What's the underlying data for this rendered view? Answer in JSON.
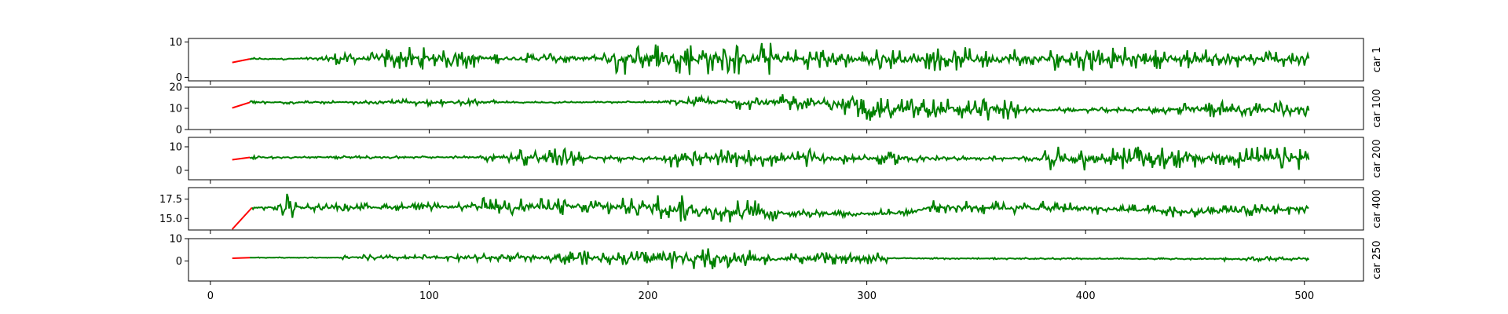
{
  "chart_data": {
    "type": "line",
    "x_ticks": [
      0,
      100,
      200,
      300,
      400,
      500
    ],
    "x_tick_labels": [
      "0",
      "100",
      "200",
      "300",
      "400",
      "500"
    ],
    "xlim": [
      -10,
      527
    ],
    "colors": {
      "prefix": "#ff0000",
      "main": "#008000",
      "frame": "#000000"
    },
    "panels": [
      {
        "label": "car 1",
        "ylim": [
          -1,
          11
        ],
        "y_ticks": [
          0,
          10
        ],
        "y_tick_labels": [
          "0",
          "10"
        ],
        "prefix": {
          "x": [
            10,
            18
          ],
          "y": [
            4.2,
            5.2
          ]
        },
        "baseline": [
          [
            18,
            5.2
          ],
          [
            100,
            5.4
          ],
          [
            200,
            5.3
          ],
          [
            300,
            5.1
          ],
          [
            400,
            5.2
          ],
          [
            502,
            5.1
          ]
        ],
        "noise": [
          {
            "x_start": 18,
            "x_end": 50,
            "amplitude": 0.4
          },
          {
            "x_start": 50,
            "x_end": 80,
            "amplitude": 1.8
          },
          {
            "x_start": 80,
            "x_end": 125,
            "amplitude": 3.2
          },
          {
            "x_start": 125,
            "x_end": 180,
            "amplitude": 1.6
          },
          {
            "x_start": 180,
            "x_end": 260,
            "amplitude": 4.8
          },
          {
            "x_start": 260,
            "x_end": 330,
            "amplitude": 3.0
          },
          {
            "x_start": 330,
            "x_end": 420,
            "amplitude": 3.4
          },
          {
            "x_start": 420,
            "x_end": 502,
            "amplitude": 2.8
          }
        ]
      },
      {
        "label": "car 100",
        "ylim": [
          0,
          20
        ],
        "y_ticks": [
          0,
          10,
          20
        ],
        "y_tick_labels": [
          "0",
          "10",
          "20"
        ],
        "prefix": {
          "x": [
            10,
            18
          ],
          "y": [
            10.2,
            12.8
          ]
        },
        "baseline": [
          [
            18,
            12.8
          ],
          [
            150,
            12.8
          ],
          [
            230,
            13.0
          ],
          [
            280,
            12.5
          ],
          [
            300,
            9.5
          ],
          [
            400,
            9.2
          ],
          [
            502,
            9.4
          ]
        ],
        "noise": [
          {
            "x_start": 18,
            "x_end": 80,
            "amplitude": 0.8
          },
          {
            "x_start": 80,
            "x_end": 130,
            "amplitude": 1.5
          },
          {
            "x_start": 130,
            "x_end": 210,
            "amplitude": 0.6
          },
          {
            "x_start": 210,
            "x_end": 240,
            "amplitude": 2.5
          },
          {
            "x_start": 240,
            "x_end": 290,
            "amplitude": 4.0
          },
          {
            "x_start": 290,
            "x_end": 370,
            "amplitude": 5.5
          },
          {
            "x_start": 370,
            "x_end": 430,
            "amplitude": 1.2
          },
          {
            "x_start": 430,
            "x_end": 502,
            "amplitude": 4.0
          }
        ]
      },
      {
        "label": "car 200",
        "ylim": [
          -4,
          14
        ],
        "y_ticks": [
          0,
          10
        ],
        "y_tick_labels": [
          "0",
          "10"
        ],
        "prefix": {
          "x": [
            10,
            18
          ],
          "y": [
            4.5,
            5.5
          ]
        },
        "baseline": [
          [
            18,
            5.5
          ],
          [
            120,
            5.6
          ],
          [
            200,
            5.0
          ],
          [
            300,
            5.1
          ],
          [
            400,
            5.0
          ],
          [
            502,
            5.2
          ]
        ],
        "noise": [
          {
            "x_start": 18,
            "x_end": 120,
            "amplitude": 0.6
          },
          {
            "x_start": 120,
            "x_end": 140,
            "amplitude": 1.8
          },
          {
            "x_start": 140,
            "x_end": 170,
            "amplitude": 4.0
          },
          {
            "x_start": 170,
            "x_end": 210,
            "amplitude": 1.6
          },
          {
            "x_start": 210,
            "x_end": 280,
            "amplitude": 3.8
          },
          {
            "x_start": 280,
            "x_end": 330,
            "amplitude": 2.8
          },
          {
            "x_start": 330,
            "x_end": 380,
            "amplitude": 1.0
          },
          {
            "x_start": 380,
            "x_end": 502,
            "amplitude": 5.0
          }
        ]
      },
      {
        "label": "car 400",
        "ylim": [
          13.5,
          19.0
        ],
        "y_ticks": [
          15.0,
          17.5
        ],
        "y_tick_labels": [
          "15.0",
          "17.5"
        ],
        "prefix": {
          "x": [
            10,
            19
          ],
          "y": [
            13.6,
            16.4
          ]
        },
        "baseline": [
          [
            19,
            16.4
          ],
          [
            100,
            16.5
          ],
          [
            200,
            16.5
          ],
          [
            240,
            15.8
          ],
          [
            300,
            15.6
          ],
          [
            320,
            15.8
          ],
          [
            330,
            16.5
          ],
          [
            400,
            16.3
          ],
          [
            450,
            15.8
          ],
          [
            502,
            16.3
          ]
        ],
        "noise": [
          {
            "x_start": 19,
            "x_end": 30,
            "amplitude": 0.3
          },
          {
            "x_start": 30,
            "x_end": 40,
            "amplitude": 1.8
          },
          {
            "x_start": 40,
            "x_end": 120,
            "amplitude": 0.5
          },
          {
            "x_start": 120,
            "x_end": 200,
            "amplitude": 1.2
          },
          {
            "x_start": 200,
            "x_end": 260,
            "amplitude": 1.8
          },
          {
            "x_start": 260,
            "x_end": 330,
            "amplitude": 0.6
          },
          {
            "x_start": 330,
            "x_end": 400,
            "amplitude": 0.9
          },
          {
            "x_start": 400,
            "x_end": 502,
            "amplitude": 0.8
          }
        ]
      },
      {
        "label": "car 250",
        "ylim": [
          -9,
          10
        ],
        "y_ticks": [
          0,
          10
        ],
        "y_tick_labels": [
          "0",
          "10"
        ],
        "prefix": {
          "x": [
            10,
            18
          ],
          "y": [
            1.2,
            1.5
          ]
        },
        "baseline": [
          [
            18,
            1.5
          ],
          [
            150,
            1.5
          ],
          [
            250,
            1.0
          ],
          [
            300,
            1.2
          ],
          [
            400,
            1.0
          ],
          [
            502,
            0.9
          ]
        ],
        "noise": [
          {
            "x_start": 18,
            "x_end": 60,
            "amplitude": 0.2
          },
          {
            "x_start": 60,
            "x_end": 110,
            "amplitude": 1.2
          },
          {
            "x_start": 110,
            "x_end": 160,
            "amplitude": 2.0
          },
          {
            "x_start": 160,
            "x_end": 210,
            "amplitude": 3.2
          },
          {
            "x_start": 210,
            "x_end": 250,
            "amplitude": 5.0
          },
          {
            "x_start": 250,
            "x_end": 310,
            "amplitude": 2.8
          },
          {
            "x_start": 310,
            "x_end": 460,
            "amplitude": 0.4
          },
          {
            "x_start": 460,
            "x_end": 502,
            "amplitude": 1.0
          }
        ]
      }
    ]
  }
}
